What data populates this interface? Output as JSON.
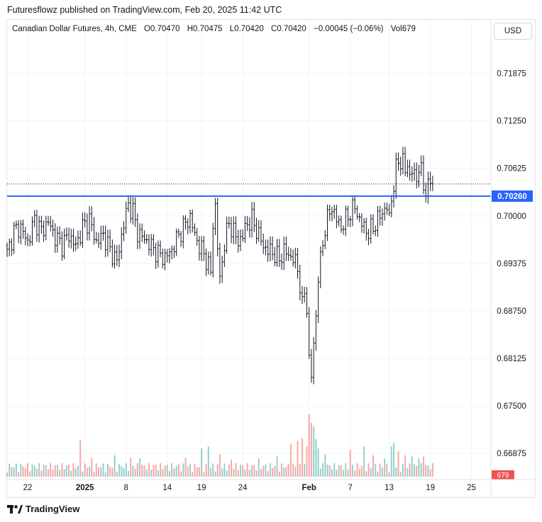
{
  "header": {
    "published": "Futuresflowz published on TradingView.com, Feb 20, 2025 11:42 UTC"
  },
  "legend": {
    "symbol": "Canadian Dollar Futures, 4h, CME",
    "open": "O0.70470",
    "high": "H0.70475",
    "low": "L0.70420",
    "close": "C0.70420",
    "change": "−0.00045 (−0.06%)",
    "volume": "Vol679"
  },
  "currency_button": "USD",
  "footer": {
    "brand": "TradingView"
  },
  "colors": {
    "up": "#26a69a",
    "down": "#ef5350",
    "level": "#2962ff",
    "candle": "#131722"
  },
  "chart_data": {
    "type": "candlestick",
    "interval": "4h",
    "ylim": [
      0.6655,
      0.723
    ],
    "y_ticks": [
      "0.71875",
      "0.71250",
      "0.70625",
      "0.70000",
      "0.69375",
      "0.68750",
      "0.68125",
      "0.67500",
      "0.66875"
    ],
    "x_ticks": [
      "22",
      "2025",
      "8",
      "14",
      "19",
      "24",
      "Feb",
      "7",
      "13",
      "19",
      "25"
    ],
    "horizontal_level": {
      "value": 0.7026,
      "label": "0.70260"
    },
    "last_price": 0.7042,
    "volume_label": "679",
    "close_path": [
      [
        0,
        0.695
      ],
      [
        3,
        0.698
      ],
      [
        6,
        0.6985
      ],
      [
        9,
        0.6965
      ],
      [
        12,
        0.6995
      ],
      [
        15,
        0.698
      ],
      [
        18,
        0.6992
      ],
      [
        21,
        0.6972
      ],
      [
        24,
        0.6962
      ],
      [
        27,
        0.6975
      ],
      [
        30,
        0.696
      ],
      [
        33,
        0.6985
      ],
      [
        36,
        0.6995
      ],
      [
        39,
        0.6965
      ],
      [
        42,
        0.6975
      ],
      [
        45,
        0.6955
      ],
      [
        48,
        0.694
      ],
      [
        51,
        0.699
      ],
      [
        53,
        0.7015
      ],
      [
        55,
        0.7005
      ],
      [
        57,
        0.6978
      ],
      [
        60,
        0.697
      ],
      [
        63,
        0.696
      ],
      [
        66,
        0.695
      ],
      [
        69,
        0.6945
      ],
      [
        72,
        0.6955
      ],
      [
        75,
        0.6975
      ],
      [
        78,
        0.699
      ],
      [
        80,
        0.6998
      ],
      [
        82,
        0.6975
      ],
      [
        84,
        0.696
      ],
      [
        86,
        0.695
      ],
      [
        88,
        0.6935
      ],
      [
        89,
        0.6925
      ],
      [
        90,
        0.699
      ],
      [
        91,
        0.7012
      ],
      [
        92,
        0.696
      ],
      [
        93,
        0.6915
      ],
      [
        95,
        0.6965
      ],
      [
        97,
        0.699
      ],
      [
        99,
        0.698
      ],
      [
        101,
        0.6965
      ],
      [
        103,
        0.6975
      ],
      [
        105,
        0.699
      ],
      [
        107,
        0.6995
      ],
      [
        110,
        0.6975
      ],
      [
        112,
        0.696
      ],
      [
        114,
        0.6955
      ],
      [
        117,
        0.695
      ],
      [
        119,
        0.6942
      ],
      [
        121,
        0.6955
      ],
      [
        123,
        0.6948
      ],
      [
        125,
        0.6945
      ],
      [
        127,
        0.693
      ],
      [
        128,
        0.691
      ],
      [
        129,
        0.688
      ],
      [
        130,
        0.69
      ],
      [
        131,
        0.688
      ],
      [
        132,
        0.681
      ],
      [
        133,
        0.679
      ],
      [
        134,
        0.683
      ],
      [
        135,
        0.687
      ],
      [
        136,
        0.692
      ],
      [
        137,
        0.694
      ],
      [
        138,
        0.6965
      ],
      [
        139,
        0.6985
      ],
      [
        140,
        0.6995
      ],
      [
        141,
        0.7005
      ],
      [
        142,
        0.7012
      ],
      [
        144,
        0.6995
      ],
      [
        146,
        0.6985
      ],
      [
        148,
        0.6995
      ],
      [
        150,
        0.7005
      ],
      [
        152,
        0.7012
      ],
      [
        154,
        0.6995
      ],
      [
        156,
        0.6985
      ],
      [
        158,
        0.6978
      ],
      [
        160,
        0.6985
      ],
      [
        162,
        0.6995
      ],
      [
        164,
        0.7005
      ],
      [
        166,
        0.7012
      ],
      [
        167,
        0.6995
      ],
      [
        168,
        0.7025
      ],
      [
        169,
        0.704
      ],
      [
        170,
        0.706
      ],
      [
        171,
        0.7075
      ],
      [
        172,
        0.707
      ],
      [
        173,
        0.7072
      ],
      [
        174,
        0.706
      ],
      [
        175,
        0.7065
      ],
      [
        176,
        0.7055
      ],
      [
        177,
        0.706
      ],
      [
        178,
        0.705
      ],
      [
        179,
        0.7052
      ],
      [
        180,
        0.7065
      ],
      [
        181,
        0.7055
      ],
      [
        182,
        0.704
      ],
      [
        183,
        0.7032
      ],
      [
        184,
        0.704
      ],
      [
        185,
        0.7046
      ],
      [
        186,
        0.7042
      ]
    ],
    "volume_spikes": [
      [
        32,
        0.55
      ],
      [
        37,
        0.28
      ],
      [
        47,
        0.32
      ],
      [
        54,
        0.28
      ],
      [
        58,
        0.27
      ],
      [
        78,
        0.28
      ],
      [
        85,
        0.42
      ],
      [
        88,
        0.45
      ],
      [
        93,
        0.33
      ],
      [
        98,
        0.25
      ],
      [
        110,
        0.27
      ],
      [
        118,
        0.3
      ],
      [
        124,
        0.48
      ],
      [
        127,
        0.53
      ],
      [
        129,
        0.57
      ],
      [
        131,
        0.45
      ],
      [
        132,
        0.93
      ],
      [
        133,
        0.8
      ],
      [
        134,
        0.75
      ],
      [
        135,
        0.56
      ],
      [
        136,
        0.42
      ],
      [
        139,
        0.33
      ],
      [
        150,
        0.4
      ],
      [
        156,
        0.45
      ],
      [
        160,
        0.32
      ],
      [
        165,
        0.27
      ],
      [
        168,
        0.45
      ],
      [
        169,
        0.5
      ],
      [
        171,
        0.38
      ],
      [
        174,
        0.32
      ],
      [
        177,
        0.3
      ],
      [
        180,
        0.27
      ],
      [
        182,
        0.3
      ]
    ]
  }
}
